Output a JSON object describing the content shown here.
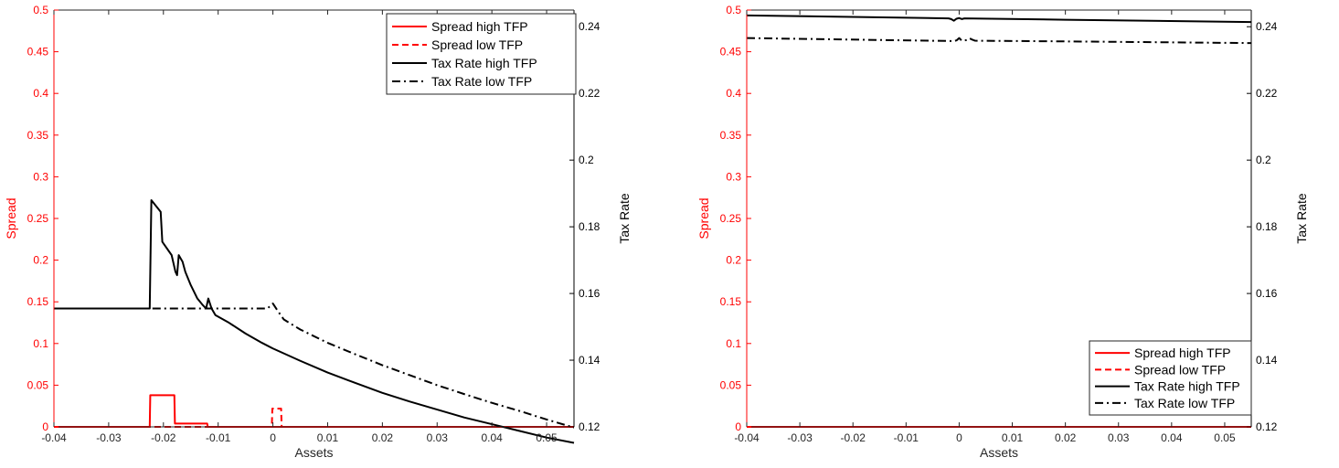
{
  "chart_data": [
    {
      "type": "line",
      "xlabel": "Assets",
      "ylabel_left": "Spread",
      "ylabel_right": "Tax Rate",
      "xlim": [
        -0.04,
        0.055
      ],
      "ylim_left": [
        0,
        0.5
      ],
      "ylim_right": [
        0.12,
        0.245
      ],
      "x_ticks": [
        "-0.04",
        "-0.03",
        "-0.02",
        "-0.01",
        "0",
        "0.01",
        "0.02",
        "0.03",
        "0.04",
        "0.05"
      ],
      "y_left_ticks": [
        "0",
        "0.05",
        "0.1",
        "0.15",
        "0.2",
        "0.25",
        "0.3",
        "0.35",
        "0.4",
        "0.45",
        "0.5"
      ],
      "y_right_ticks": [
        "0.12",
        "0.14",
        "0.16",
        "0.18",
        "0.2",
        "0.22",
        "0.24"
      ],
      "grid": false,
      "legend_position": "top-right",
      "left_axis_color": "#ff0000",
      "right_axis_color": "#000000",
      "series": [
        {
          "name": "Spread high TFP",
          "axis": "left",
          "color": "#ff0000",
          "dash": "solid",
          "points": [
            [
              -0.04,
              0
            ],
            [
              -0.0225,
              0
            ],
            [
              -0.0224,
              0.038
            ],
            [
              -0.018,
              0.038
            ],
            [
              -0.0179,
              0.004
            ],
            [
              -0.012,
              0.004
            ],
            [
              -0.0119,
              0
            ],
            [
              0.055,
              0
            ]
          ]
        },
        {
          "name": "Spread low TFP",
          "axis": "left",
          "color": "#ff0000",
          "dash": "dashed",
          "points": [
            [
              -0.04,
              0
            ],
            [
              -0.0002,
              0
            ],
            [
              -0.0001,
              0.022
            ],
            [
              0.0015,
              0.022
            ],
            [
              0.0016,
              0
            ],
            [
              0.055,
              0
            ]
          ]
        },
        {
          "name": "Tax Rate high TFP",
          "axis": "right",
          "color": "#000000",
          "dash": "solid",
          "points": [
            [
              -0.04,
              0.1555
            ],
            [
              -0.0225,
              0.1555
            ],
            [
              -0.0222,
              0.188
            ],
            [
              -0.0205,
              0.1845
            ],
            [
              -0.0202,
              0.1755
            ],
            [
              -0.0185,
              0.1715
            ],
            [
              -0.0178,
              0.1665
            ],
            [
              -0.0175,
              0.1655
            ],
            [
              -0.0172,
              0.1715
            ],
            [
              -0.0165,
              0.1695
            ],
            [
              -0.016,
              0.1665
            ],
            [
              -0.015,
              0.1625
            ],
            [
              -0.0138,
              0.1585
            ],
            [
              -0.0128,
              0.1565
            ],
            [
              -0.0122,
              0.1555
            ],
            [
              -0.0118,
              0.1585
            ],
            [
              -0.0112,
              0.1555
            ],
            [
              -0.0105,
              0.1535
            ],
            [
              -0.008,
              0.1512
            ],
            [
              -0.005,
              0.148
            ],
            [
              -0.002,
              0.1452
            ],
            [
              0.0,
              0.1435
            ],
            [
              0.005,
              0.1398
            ],
            [
              0.01,
              0.1363
            ],
            [
              0.015,
              0.1332
            ],
            [
              0.02,
              0.1302
            ],
            [
              0.025,
              0.1276
            ],
            [
              0.03,
              0.1252
            ],
            [
              0.035,
              0.1228
            ],
            [
              0.04,
              0.1208
            ],
            [
              0.045,
              0.1188
            ],
            [
              0.05,
              0.1168
            ],
            [
              0.055,
              0.1152
            ]
          ]
        },
        {
          "name": "Tax Rate low TFP",
          "axis": "right",
          "color": "#000000",
          "dash": "dashdot",
          "points": [
            [
              -0.022,
              0.1555
            ],
            [
              -0.001,
              0.1555
            ],
            [
              0.0,
              0.157
            ],
            [
              0.001,
              0.1545
            ],
            [
              0.002,
              0.1522
            ],
            [
              0.005,
              0.1492
            ],
            [
              0.01,
              0.1452
            ],
            [
              0.015,
              0.1418
            ],
            [
              0.02,
              0.1385
            ],
            [
              0.025,
              0.1355
            ],
            [
              0.03,
              0.1325
            ],
            [
              0.035,
              0.1298
            ],
            [
              0.04,
              0.1272
            ],
            [
              0.045,
              0.1248
            ],
            [
              0.05,
              0.1222
            ],
            [
              0.055,
              0.1198
            ]
          ]
        }
      ]
    },
    {
      "type": "line",
      "xlabel": "Assets",
      "ylabel_left": "Spread",
      "ylabel_right": "Tax Rate",
      "xlim": [
        -0.04,
        0.055
      ],
      "ylim_left": [
        0,
        0.5
      ],
      "ylim_right": [
        0.12,
        0.245
      ],
      "x_ticks": [
        "-0.04",
        "-0.03",
        "-0.02",
        "-0.01",
        "0",
        "0.01",
        "0.02",
        "0.03",
        "0.04",
        "0.05"
      ],
      "y_left_ticks": [
        "0",
        "0.05",
        "0.1",
        "0.15",
        "0.2",
        "0.25",
        "0.3",
        "0.35",
        "0.4",
        "0.45",
        "0.5"
      ],
      "y_right_ticks": [
        "0.12",
        "0.14",
        "0.16",
        "0.18",
        "0.2",
        "0.22",
        "0.24"
      ],
      "grid": false,
      "legend_position": "bottom-right",
      "left_axis_color": "#ff0000",
      "right_axis_color": "#000000",
      "series": [
        {
          "name": "Spread high TFP",
          "axis": "left",
          "color": "#ff0000",
          "dash": "solid",
          "points": [
            [
              -0.04,
              0
            ],
            [
              0.055,
              0
            ]
          ]
        },
        {
          "name": "Spread low TFP",
          "axis": "left",
          "color": "#ff0000",
          "dash": "dashed",
          "points": [
            [
              -0.04,
              0
            ],
            [
              0.055,
              0
            ]
          ]
        },
        {
          "name": "Tax Rate high TFP",
          "axis": "right",
          "color": "#000000",
          "dash": "solid",
          "points": [
            [
              -0.04,
              0.2434
            ],
            [
              -0.002,
              0.2425
            ],
            [
              -0.0015,
              0.2423
            ],
            [
              -0.001,
              0.2418
            ],
            [
              -0.0005,
              0.2424
            ],
            [
              0.0,
              0.2426
            ],
            [
              0.0005,
              0.2423
            ],
            [
              0.001,
              0.2425
            ],
            [
              0.02,
              0.2421
            ],
            [
              0.055,
              0.2414
            ]
          ]
        },
        {
          "name": "Tax Rate low TFP",
          "axis": "right",
          "color": "#000000",
          "dash": "dashdot",
          "points": [
            [
              -0.04,
              0.2366
            ],
            [
              -0.001,
              0.2357
            ],
            [
              -0.0005,
              0.2359
            ],
            [
              0.0,
              0.2366
            ],
            [
              0.0005,
              0.2358
            ],
            [
              0.0015,
              0.236
            ],
            [
              0.002,
              0.2365
            ],
            [
              0.0025,
              0.2361
            ],
            [
              0.003,
              0.2358
            ],
            [
              0.02,
              0.2356
            ],
            [
              0.055,
              0.2351
            ]
          ]
        }
      ]
    }
  ]
}
